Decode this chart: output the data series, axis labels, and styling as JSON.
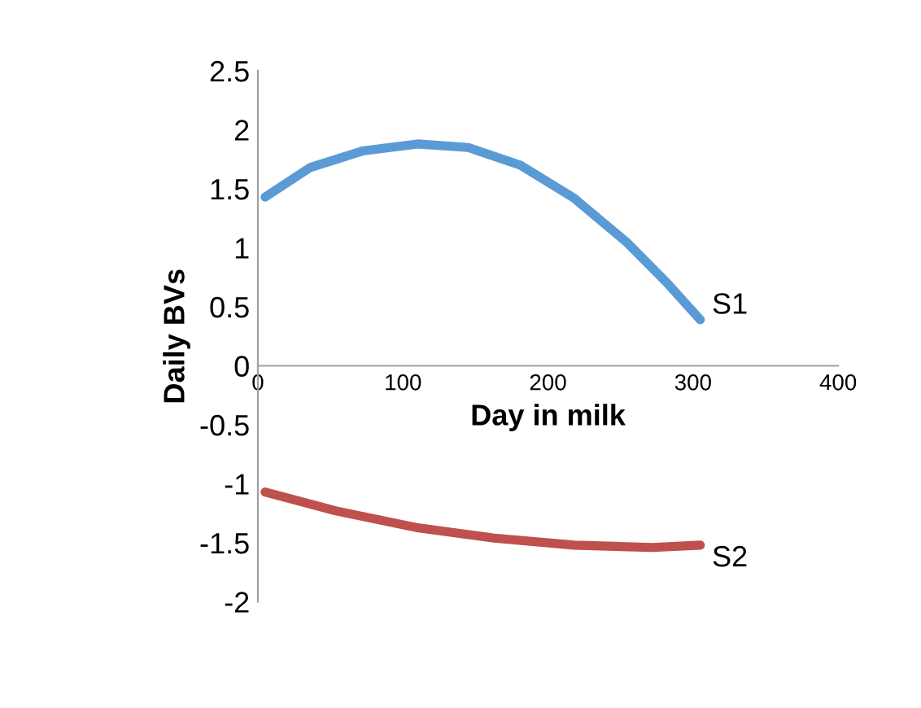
{
  "chart_data": {
    "type": "line",
    "xlabel": "Day in milk",
    "ylabel": "Daily BVs",
    "xlim": [
      0,
      400
    ],
    "xticks": [
      0,
      100,
      200,
      300,
      400
    ],
    "ylim": [
      -2,
      2.5
    ],
    "yticks": [
      -2,
      -1.5,
      -1,
      -0.5,
      0,
      0.5,
      1,
      1.5,
      2,
      2.5
    ],
    "grid": false,
    "legend": false,
    "marker": "none",
    "line_style": "solid",
    "series": [
      {
        "name": "S1",
        "color": "#5b9bd5",
        "x": [
          5,
          36,
          72,
          110,
          145,
          181,
          218,
          254,
          283,
          305
        ],
        "values": [
          1.43,
          1.68,
          1.82,
          1.88,
          1.85,
          1.7,
          1.42,
          1.05,
          0.69,
          0.39
        ]
      },
      {
        "name": "S2",
        "color": "#c0504d",
        "x": [
          5,
          54,
          109,
          163,
          218,
          272,
          305
        ],
        "values": [
          -1.07,
          -1.23,
          -1.37,
          -1.46,
          -1.52,
          -1.54,
          -1.52
        ]
      }
    ]
  }
}
